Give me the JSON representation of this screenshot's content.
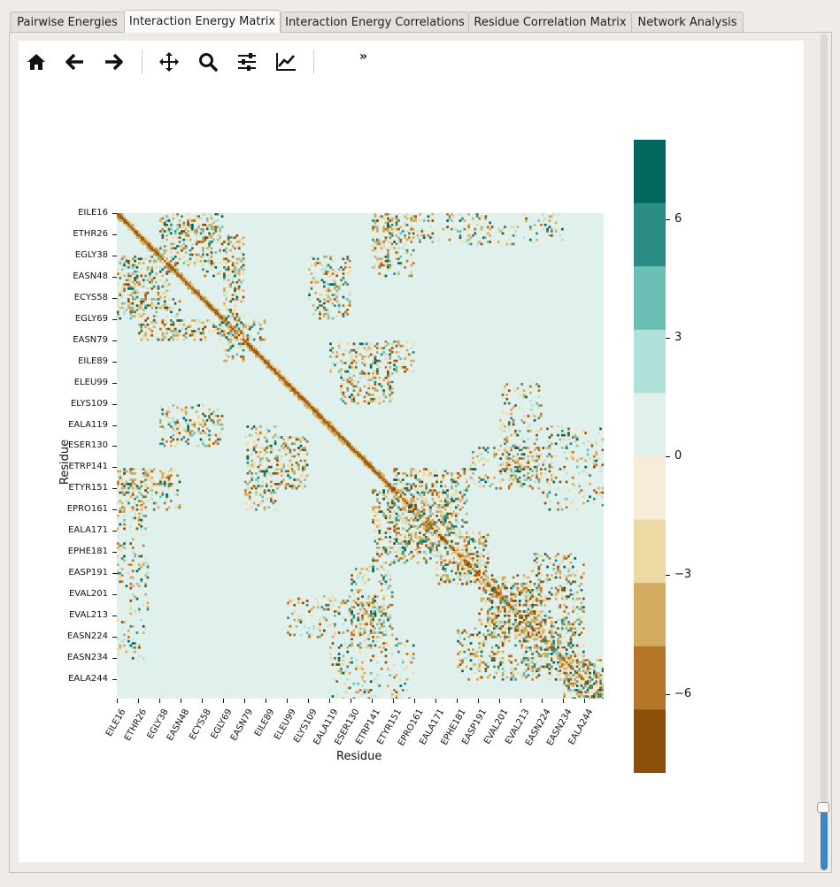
{
  "tabs": [
    {
      "label": "Pairwise Energies",
      "active": false
    },
    {
      "label": "Interaction Energy Matrix",
      "active": true
    },
    {
      "label": "Interaction Energy Correlations",
      "active": false
    },
    {
      "label": "Residue Correlation Matrix",
      "active": false
    },
    {
      "label": "Network Analysis",
      "active": false
    }
  ],
  "toolbar": {
    "buttons": [
      {
        "name": "home-icon"
      },
      {
        "name": "back-arrow-icon"
      },
      {
        "name": "forward-arrow-icon"
      },
      {
        "name": "pan-icon"
      },
      {
        "name": "zoom-icon"
      },
      {
        "name": "configure-subplots-icon"
      },
      {
        "name": "edit-axis-icon"
      }
    ],
    "overflow_label": "»"
  },
  "chart_data": {
    "type": "heatmap",
    "xlabel": "Residue",
    "ylabel": "Residue",
    "x_ticks": [
      "EILE16",
      "ETHR26",
      "EGLY38",
      "EASN48",
      "ECYS58",
      "EGLY69",
      "EASN79",
      "EILE89",
      "ELEU99",
      "ELYS109",
      "EALA119",
      "ESER130",
      "ETRP141",
      "ETYR151",
      "EPRO161",
      "EALA171",
      "EPHE181",
      "EASP191",
      "EVAL201",
      "EVAL213",
      "EASN224",
      "EASN234",
      "EALA244"
    ],
    "y_ticks": [
      "EILE16",
      "ETHR26",
      "EGLY38",
      "EASN48",
      "ECYS58",
      "EGLY69",
      "EASN79",
      "EILE89",
      "ELEU99",
      "ELYS109",
      "EALA119",
      "ESER130",
      "ETRP141",
      "ETYR151",
      "EPRO161",
      "EALA171",
      "EPHE181",
      "EASP191",
      "EVAL201",
      "EVAL213",
      "EASN224",
      "EASN234",
      "EALA244"
    ],
    "colorbar": {
      "ticks": [
        6,
        3,
        0,
        -3,
        -6
      ],
      "tick_labels": [
        "6",
        "3",
        "0",
        "−3",
        "−6"
      ],
      "range": [
        -8,
        8
      ],
      "colors": [
        "#01665e",
        "#2b8c85",
        "#6cbfb4",
        "#b0e1d9",
        "#dff0ed",
        "#f5ecd9",
        "#ecd9a4",
        "#d4ab60",
        "#b4772a",
        "#8b4f09"
      ]
    }
  }
}
